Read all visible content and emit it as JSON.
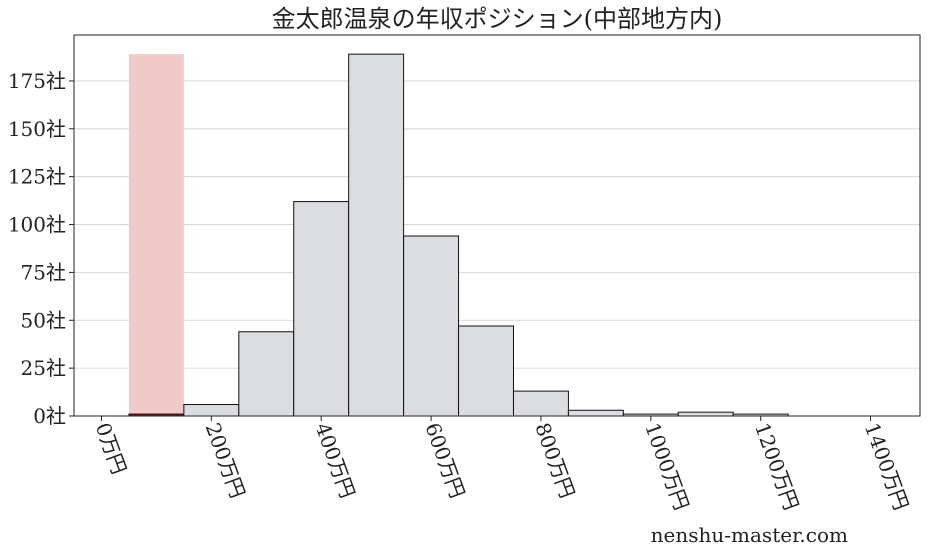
{
  "chart_data": {
    "type": "bar",
    "title": "金太郎温泉の年収ポジション(中部地方内)",
    "xlabel": "",
    "ylabel": "",
    "xlim": [
      -50,
      1490
    ],
    "ylim": [
      0,
      199
    ],
    "x_ticks": [
      {
        "value": 0,
        "label": "0万円"
      },
      {
        "value": 200,
        "label": "200万円"
      },
      {
        "value": 400,
        "label": "400万円"
      },
      {
        "value": 600,
        "label": "600万円"
      },
      {
        "value": 800,
        "label": "800万円"
      },
      {
        "value": 1000,
        "label": "1000万円"
      },
      {
        "value": 1200,
        "label": "1200万円"
      },
      {
        "value": 1400,
        "label": "1400万円"
      }
    ],
    "y_ticks": [
      {
        "value": 0,
        "label": "0社"
      },
      {
        "value": 25,
        "label": "25社"
      },
      {
        "value": 50,
        "label": "50社"
      },
      {
        "value": 75,
        "label": "75社"
      },
      {
        "value": 100,
        "label": "100社"
      },
      {
        "value": 125,
        "label": "125社"
      },
      {
        "value": 150,
        "label": "150社"
      },
      {
        "value": 175,
        "label": "175社"
      }
    ],
    "bin_width": 100,
    "bins": [
      {
        "start": 50,
        "count": 1
      },
      {
        "start": 150,
        "count": 6
      },
      {
        "start": 250,
        "count": 44
      },
      {
        "start": 350,
        "count": 112
      },
      {
        "start": 450,
        "count": 189
      },
      {
        "start": 550,
        "count": 94
      },
      {
        "start": 650,
        "count": 47
      },
      {
        "start": 750,
        "count": 13
      },
      {
        "start": 850,
        "count": 3
      },
      {
        "start": 950,
        "count": 1
      },
      {
        "start": 1050,
        "count": 2
      },
      {
        "start": 1150,
        "count": 1
      },
      {
        "start": 1250,
        "count": 0
      },
      {
        "start": 1350,
        "count": 0
      }
    ],
    "highlight": {
      "start": 50,
      "end": 150,
      "height": 189
    },
    "grid": true,
    "colors": {
      "bar_fill": "#dcdde0",
      "bar_edge": "#111111",
      "highlight_fill": "#f0c9c9",
      "highlight_bar": "#8b1a1a",
      "grid": "#d0d0d0"
    }
  },
  "watermark": "nenshu-master.com"
}
